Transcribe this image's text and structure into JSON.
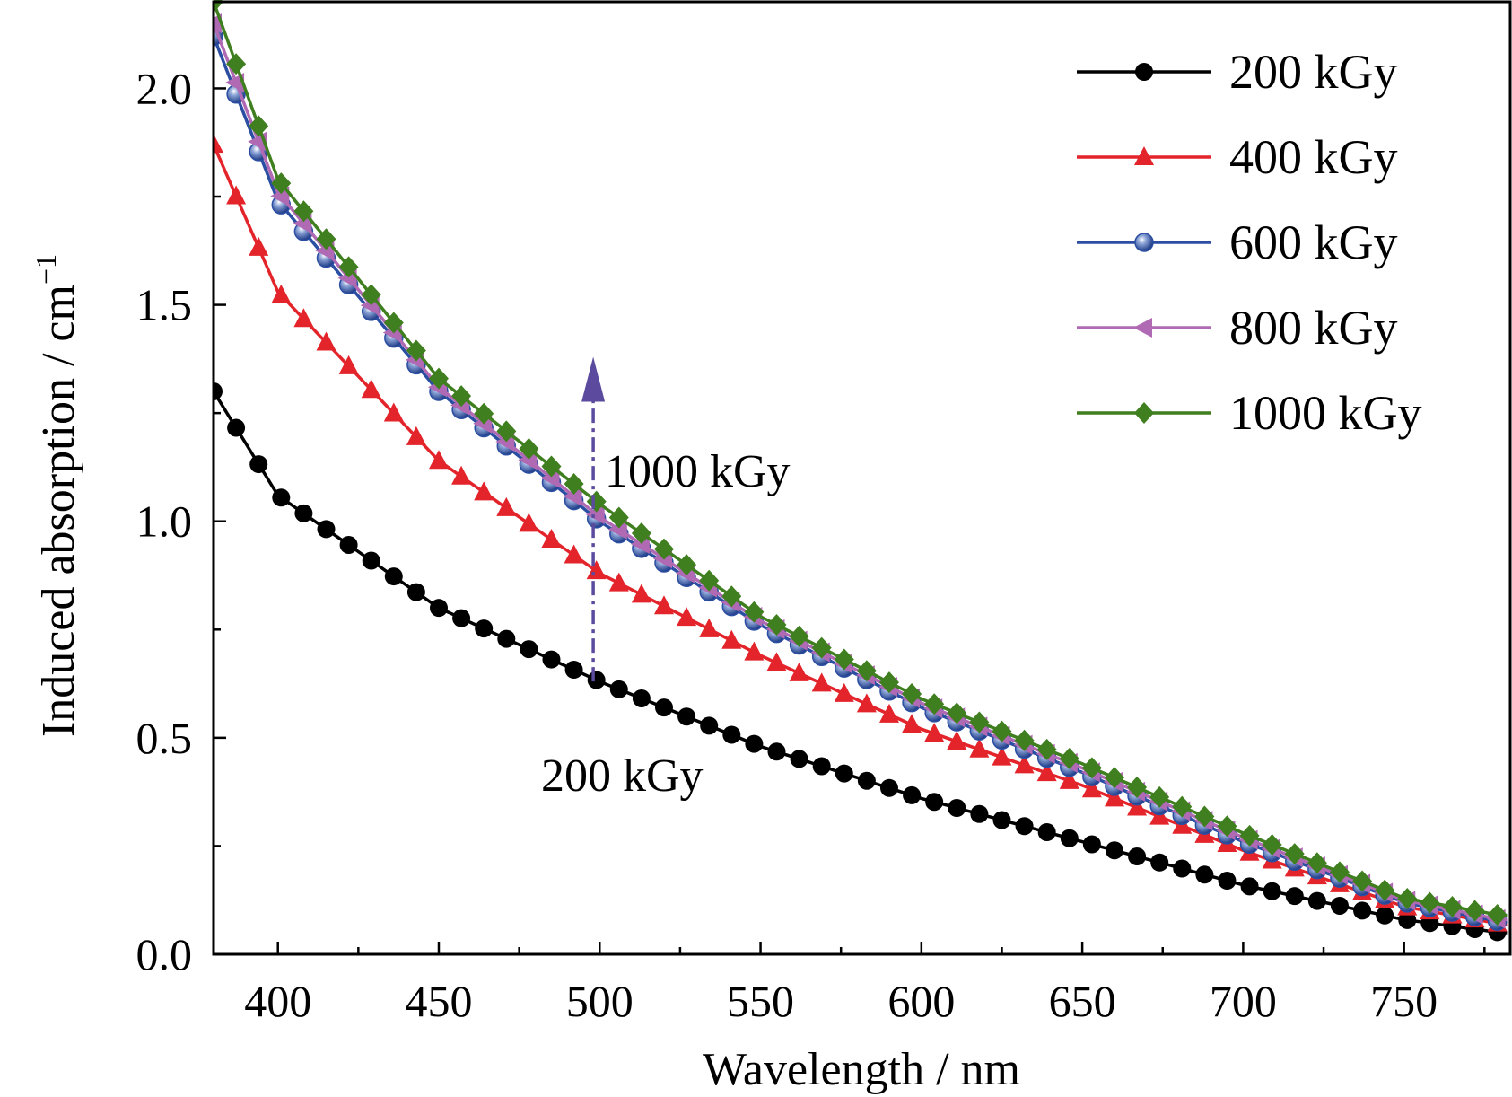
{
  "chart_data": {
    "type": "line",
    "xlabel": "Wavelength / nm",
    "ylabel": "Induced absorption / cm",
    "ylabel_superscript": "−1",
    "xlim": [
      380,
      783
    ],
    "ylim": [
      0,
      2.2
    ],
    "xticks": [
      400,
      450,
      500,
      550,
      600,
      650,
      700,
      750
    ],
    "xtick_labels": [
      "400",
      "450",
      "500",
      "550",
      "600",
      "650",
      "700",
      "750"
    ],
    "yticks": [
      0,
      0.5,
      1.0,
      1.5,
      2.0
    ],
    "ytick_labels": [
      "0.0",
      "0.5",
      "1.0",
      "1.5",
      "2.0"
    ],
    "grid": false,
    "legend_position": "top-right",
    "series": [
      {
        "name": "200 kGy",
        "color": "#000000",
        "marker": "circle",
        "x": [
          380,
          400,
          450,
          500,
          550,
          600,
          650,
          700,
          750,
          780
        ],
        "y": [
          1.3,
          1.06,
          0.8,
          0.63,
          0.48,
          0.36,
          0.26,
          0.16,
          0.08,
          0.05
        ]
      },
      {
        "name": "400 kGy",
        "color": "#e3242b",
        "marker": "triangle-up",
        "x": [
          380,
          400,
          450,
          500,
          550,
          600,
          650,
          700,
          750,
          780
        ],
        "y": [
          1.87,
          1.53,
          1.14,
          0.88,
          0.69,
          0.52,
          0.39,
          0.24,
          0.11,
          0.07
        ]
      },
      {
        "name": "600 kGy",
        "color": "#2b4ea2",
        "marker": "sphere",
        "x": [
          380,
          400,
          450,
          500,
          550,
          600,
          650,
          700,
          750,
          780
        ],
        "y": [
          2.12,
          1.74,
          1.3,
          1.0,
          0.76,
          0.57,
          0.42,
          0.26,
          0.12,
          0.075
        ]
      },
      {
        "name": "800 kGy",
        "color": "#b06ab3",
        "marker": "triangle-left",
        "x": [
          380,
          400,
          450,
          500,
          550,
          600,
          650,
          700,
          750,
          780
        ],
        "y": [
          2.15,
          1.76,
          1.31,
          1.01,
          0.77,
          0.58,
          0.43,
          0.27,
          0.125,
          0.08
        ]
      },
      {
        "name": "1000 kGy",
        "color": "#3f7f1f",
        "marker": "diamond",
        "x": [
          380,
          400,
          450,
          500,
          550,
          600,
          650,
          700,
          750,
          780
        ],
        "y": [
          2.2,
          1.79,
          1.33,
          1.04,
          0.78,
          0.59,
          0.44,
          0.28,
          0.13,
          0.09
        ]
      }
    ],
    "annotations": {
      "arrow_x": 498,
      "arrow_from": 0.63,
      "arrow_to": 1.38,
      "arrow_color": "#5b4a9e",
      "top_label": "1000 kGy",
      "bottom_label": "200 kGy"
    }
  }
}
